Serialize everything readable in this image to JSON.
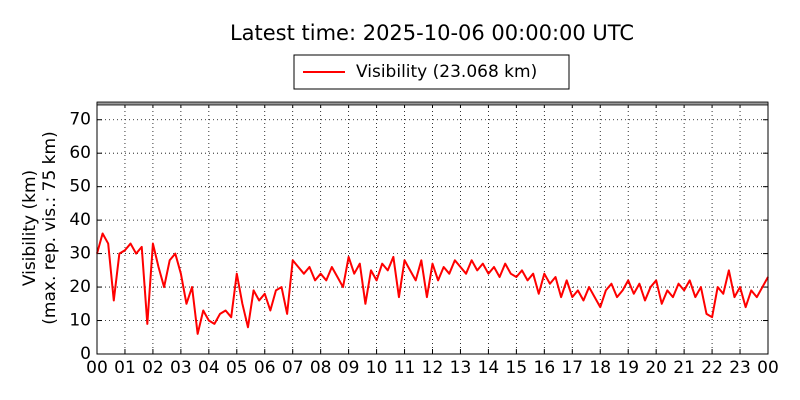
{
  "chart_data": {
    "type": "line",
    "title": "Latest time: 2025-10-06 00:00:00 UTC",
    "y_label": [
      "Visibility (km)",
      "(max. rep. vis.: 75 km)"
    ],
    "x": [
      0,
      0.2,
      0.4,
      0.6,
      0.8,
      1,
      1.2,
      1.4,
      1.6,
      1.8,
      2,
      2.2,
      2.4,
      2.6,
      2.8,
      3,
      3.2,
      3.4,
      3.6,
      3.8,
      4,
      4.2,
      4.4,
      4.6,
      4.8,
      5,
      5.2,
      5.4,
      5.6,
      5.8,
      6,
      6.2,
      6.4,
      6.6,
      6.8,
      7,
      7.2,
      7.4,
      7.6,
      7.8,
      8,
      8.2,
      8.4,
      8.6,
      8.8,
      9,
      9.2,
      9.4,
      9.6,
      9.8,
      10,
      10.2,
      10.4,
      10.6,
      10.8,
      11,
      11.2,
      11.4,
      11.6,
      11.8,
      12,
      12.2,
      12.4,
      12.6,
      12.8,
      13,
      13.2,
      13.4,
      13.6,
      13.8,
      14,
      14.2,
      14.4,
      14.6,
      14.8,
      15,
      15.2,
      15.4,
      15.6,
      15.8,
      16,
      16.2,
      16.4,
      16.6,
      16.8,
      17,
      17.2,
      17.4,
      17.6,
      17.8,
      18,
      18.2,
      18.4,
      18.6,
      18.8,
      19,
      19.2,
      19.4,
      19.6,
      19.8,
      20,
      20.2,
      20.4,
      20.6,
      20.8,
      21,
      21.2,
      21.4,
      21.6,
      21.8,
      22,
      22.2,
      22.4,
      22.6,
      22.8,
      23,
      23.2,
      23.4,
      23.6,
      23.8,
      24
    ],
    "series": [
      {
        "name": "Visibility (23.068 km)",
        "color": "#ff0000",
        "values": [
          30,
          36,
          33,
          16,
          30,
          31,
          33,
          30,
          32,
          9,
          33,
          26,
          20,
          28,
          30,
          24,
          15,
          20,
          6,
          13,
          10,
          9,
          12,
          13,
          11,
          24,
          15,
          8,
          19,
          16,
          18,
          13,
          19,
          20,
          12,
          28,
          26,
          24,
          26,
          22,
          24,
          22,
          26,
          23,
          20,
          29,
          24,
          27,
          15,
          25,
          22,
          27,
          25,
          29,
          17,
          28,
          25,
          22,
          28,
          17,
          27,
          22,
          26,
          24,
          28,
          26,
          24,
          28,
          25,
          27,
          24,
          26,
          23,
          27,
          24,
          23,
          25,
          22,
          24,
          18,
          24,
          21,
          23,
          17,
          22,
          17,
          19,
          16,
          20,
          17,
          14,
          19,
          21,
          17,
          19,
          22,
          18,
          21,
          16,
          20,
          22,
          15,
          19,
          17,
          21,
          19,
          22,
          17,
          20,
          12,
          11,
          20,
          18,
          25,
          17,
          20,
          14,
          19,
          17,
          20,
          23
        ]
      }
    ],
    "xlim": [
      0,
      24
    ],
    "ylim": [
      0,
      75
    ],
    "yticks": [
      0,
      10,
      20,
      30,
      40,
      50,
      60,
      70
    ],
    "xticks": [
      {
        "value": 0,
        "label": "00"
      },
      {
        "value": 1,
        "label": "01"
      },
      {
        "value": 2,
        "label": "02"
      },
      {
        "value": 3,
        "label": "03"
      },
      {
        "value": 4,
        "label": "04"
      },
      {
        "value": 5,
        "label": "05"
      },
      {
        "value": 6,
        "label": "06"
      },
      {
        "value": 7,
        "label": "07"
      },
      {
        "value": 8,
        "label": "08"
      },
      {
        "value": 9,
        "label": "09"
      },
      {
        "value": 10,
        "label": "10"
      },
      {
        "value": 11,
        "label": "11"
      },
      {
        "value": 12,
        "label": "12"
      },
      {
        "value": 13,
        "label": "13"
      },
      {
        "value": 14,
        "label": "14"
      },
      {
        "value": 15,
        "label": "15"
      },
      {
        "value": 16,
        "label": "16"
      },
      {
        "value": 17,
        "label": "17"
      },
      {
        "value": 18,
        "label": "18"
      },
      {
        "value": 19,
        "label": "19"
      },
      {
        "value": 20,
        "label": "20"
      },
      {
        "value": 21,
        "label": "21"
      },
      {
        "value": 22,
        "label": "22"
      },
      {
        "value": 23,
        "label": "23"
      },
      {
        "value": 24,
        "label": "00"
      }
    ],
    "grid": true,
    "legend": "top"
  }
}
